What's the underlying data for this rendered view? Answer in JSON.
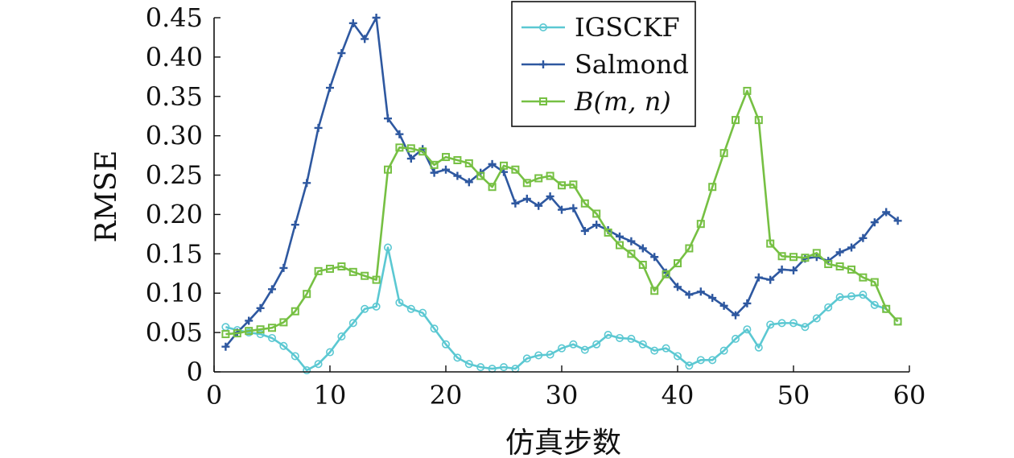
{
  "chart_data": {
    "type": "line",
    "xlabel": "仿真步数",
    "ylabel": "RMSE",
    "xlim": [
      0,
      60
    ],
    "ylim": [
      0,
      0.45
    ],
    "xticks": [
      0,
      10,
      20,
      30,
      40,
      50,
      60
    ],
    "xtick_labels": [
      "0",
      "10",
      "20",
      "30",
      "40",
      "50",
      "60"
    ],
    "yticks": [
      0,
      0.05,
      0.1,
      0.15,
      0.2,
      0.25,
      0.3,
      0.35,
      0.4,
      0.45
    ],
    "ytick_labels": [
      "0",
      "0.05",
      "0.10",
      "0.15",
      "0.20",
      "0.25",
      "0.30",
      "0.35",
      "0.40",
      "0.45"
    ],
    "grid": false,
    "legend_position": "top-right",
    "x": [
      1,
      2,
      3,
      4,
      5,
      6,
      7,
      8,
      9,
      10,
      11,
      12,
      13,
      14,
      15,
      16,
      17,
      18,
      19,
      20,
      21,
      22,
      23,
      24,
      25,
      26,
      27,
      28,
      29,
      30,
      31,
      32,
      33,
      34,
      35,
      36,
      37,
      38,
      39,
      40,
      41,
      42,
      43,
      44,
      45,
      46,
      47,
      48,
      49,
      50,
      51,
      52,
      53,
      54,
      55,
      56,
      57,
      58,
      59
    ],
    "series": [
      {
        "name": "IGSCKF",
        "color": "#5bc8d2",
        "marker": "circle",
        "values": [
          0.057,
          0.053,
          0.05,
          0.048,
          0.043,
          0.033,
          0.02,
          0.002,
          0.01,
          0.025,
          0.045,
          0.062,
          0.08,
          0.083,
          0.158,
          0.088,
          0.08,
          0.075,
          0.055,
          0.035,
          0.018,
          0.01,
          0.006,
          0.004,
          0.006,
          0.004,
          0.017,
          0.021,
          0.022,
          0.03,
          0.035,
          0.028,
          0.035,
          0.047,
          0.043,
          0.042,
          0.035,
          0.027,
          0.03,
          0.02,
          0.008,
          0.015,
          0.015,
          0.027,
          0.042,
          0.054,
          0.031,
          0.06,
          0.062,
          0.062,
          0.057,
          0.068,
          0.082,
          0.095,
          0.096,
          0.098,
          0.085,
          0.08,
          0.064
        ]
      },
      {
        "name": "Salmond",
        "color": "#2e58a0",
        "marker": "plus",
        "values": [
          0.032,
          0.05,
          0.065,
          0.081,
          0.105,
          0.132,
          0.187,
          0.24,
          0.31,
          0.361,
          0.405,
          0.443,
          0.423,
          0.45,
          0.322,
          0.302,
          0.271,
          0.283,
          0.253,
          0.257,
          0.249,
          0.241,
          0.253,
          0.264,
          0.254,
          0.214,
          0.22,
          0.211,
          0.223,
          0.206,
          0.208,
          0.179,
          0.187,
          0.18,
          0.172,
          0.166,
          0.157,
          0.146,
          0.126,
          0.108,
          0.098,
          0.102,
          0.094,
          0.084,
          0.072,
          0.087,
          0.12,
          0.117,
          0.13,
          0.129,
          0.144,
          0.146,
          0.141,
          0.152,
          0.158,
          0.17,
          0.19,
          0.203,
          0.192
        ]
      },
      {
        "name": "B(m, n)",
        "color": "#76c043",
        "marker": "square",
        "values": [
          0.048,
          0.049,
          0.052,
          0.054,
          0.056,
          0.063,
          0.077,
          0.099,
          0.128,
          0.131,
          0.134,
          0.127,
          0.122,
          0.117,
          0.257,
          0.285,
          0.284,
          0.28,
          0.263,
          0.273,
          0.269,
          0.265,
          0.249,
          0.235,
          0.262,
          0.257,
          0.24,
          0.246,
          0.249,
          0.237,
          0.238,
          0.214,
          0.201,
          0.177,
          0.161,
          0.15,
          0.136,
          0.103,
          0.124,
          0.138,
          0.157,
          0.188,
          0.235,
          0.278,
          0.32,
          0.357,
          0.32,
          0.163,
          0.147,
          0.146,
          0.145,
          0.151,
          0.137,
          0.134,
          0.13,
          0.12,
          0.114,
          0.08,
          0.064
        ]
      }
    ]
  }
}
